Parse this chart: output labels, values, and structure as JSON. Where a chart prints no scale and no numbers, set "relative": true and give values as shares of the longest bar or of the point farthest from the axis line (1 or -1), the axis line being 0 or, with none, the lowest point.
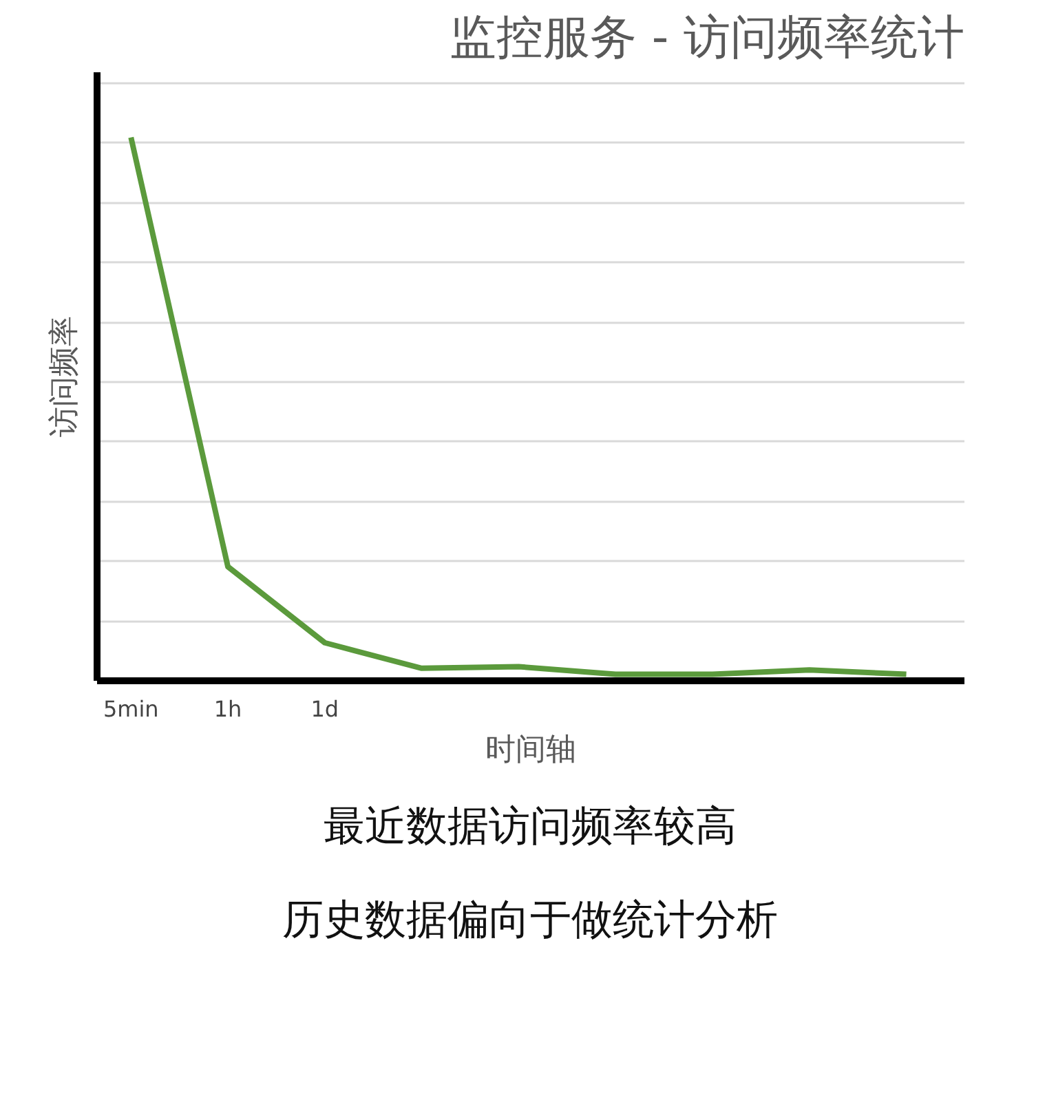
{
  "chart_data": {
    "type": "line",
    "title": "监控服务 - 访问频率统计",
    "xlabel": "时间轴",
    "ylabel": "访问频率",
    "categories": [
      "5min",
      "1h",
      "1d",
      null,
      null,
      null,
      null,
      null,
      null
    ],
    "series": [
      {
        "color": "#5b9a3c",
        "values": [
          1,
          0.21,
          0.07,
          0.023,
          0.026,
          0.012,
          0.012,
          0.02,
          0.012
        ]
      }
    ],
    "relative": true,
    "grid": "y",
    "marker": "none",
    "line_style": "solid",
    "annotations": [
      "最近数据访问频率较高",
      "历史数据偏向于做统计分析"
    ]
  }
}
